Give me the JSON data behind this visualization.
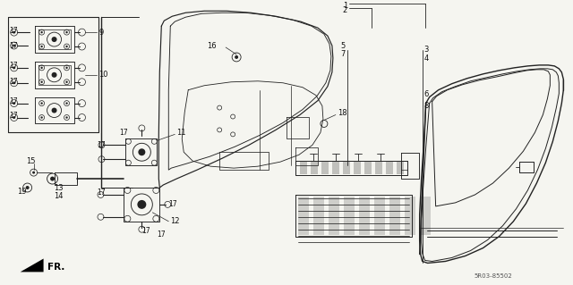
{
  "bg_color": "#f5f5f0",
  "fig_width": 6.4,
  "fig_height": 3.19,
  "line_color": "#222222",
  "text_color": "#111111",
  "diagram_code": "5R03-85502"
}
